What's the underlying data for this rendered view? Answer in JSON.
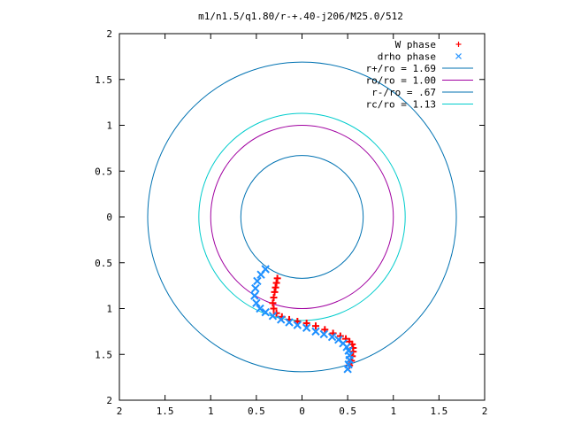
{
  "chart_data": {
    "type": "scatter",
    "title": "m1/n1.5/q1.80/r-+.40-j206/M25.0/512",
    "xlabel": "",
    "ylabel": "",
    "xlim": [
      -2,
      2
    ],
    "ylim": [
      -2,
      2
    ],
    "x_ticks": [
      -2,
      -1.5,
      -1,
      -0.5,
      0,
      0.5,
      1,
      1.5,
      2
    ],
    "y_ticks": [
      -2,
      -1.5,
      -1,
      -0.5,
      0,
      0.5,
      1,
      1.5,
      2
    ],
    "x_tick_labels": [
      "2",
      "1.5",
      "1",
      "0.5",
      "0",
      "0.5",
      "1",
      "1.5",
      "2"
    ],
    "y_tick_labels": [
      "2",
      "1.5",
      "1",
      "0.5",
      "0",
      "0.5",
      "1",
      "1.5",
      "2"
    ],
    "grid": false,
    "legend_position": "top-right",
    "series": [
      {
        "name": "W phase",
        "kind": "points",
        "marker": "plus",
        "color": "#ff0000",
        "x": [
          -0.27,
          -0.28,
          -0.29,
          -0.3,
          -0.31,
          -0.32,
          -0.31,
          -0.28,
          -0.22,
          -0.14,
          -0.05,
          0.05,
          0.15,
          0.25,
          0.34,
          0.42,
          0.48,
          0.52,
          0.55,
          0.56,
          0.56,
          0.55,
          0.54,
          0.52
        ],
        "y": [
          -0.67,
          -0.72,
          -0.77,
          -0.82,
          -0.88,
          -0.94,
          -1.0,
          -1.05,
          -1.09,
          -1.12,
          -1.14,
          -1.16,
          -1.19,
          -1.23,
          -1.27,
          -1.3,
          -1.33,
          -1.36,
          -1.39,
          -1.43,
          -1.47,
          -1.52,
          -1.57,
          -1.62
        ]
      },
      {
        "name": "drho phase",
        "kind": "points",
        "marker": "cross",
        "color": "#1e90ff",
        "x": [
          -0.4,
          -0.45,
          -0.49,
          -0.51,
          -0.52,
          -0.5,
          -0.46,
          -0.4,
          -0.32,
          -0.23,
          -0.14,
          -0.05,
          0.05,
          0.15,
          0.24,
          0.33,
          0.4,
          0.45,
          0.49,
          0.51,
          0.52,
          0.52,
          0.51,
          0.5
        ],
        "y": [
          -0.57,
          -0.63,
          -0.7,
          -0.78,
          -0.86,
          -0.94,
          -1.0,
          -1.04,
          -1.08,
          -1.12,
          -1.15,
          -1.18,
          -1.21,
          -1.25,
          -1.28,
          -1.31,
          -1.34,
          -1.38,
          -1.42,
          -1.46,
          -1.51,
          -1.56,
          -1.61,
          -1.66
        ]
      },
      {
        "name": "r+/ro = 1.69",
        "kind": "circle",
        "radius": 1.69,
        "color": "#0072b2"
      },
      {
        "name": "ro/ro = 1.00",
        "kind": "circle",
        "radius": 1.0,
        "color": "#a000a0"
      },
      {
        "name": "r-/ro = .67",
        "kind": "circle",
        "radius": 0.67,
        "color": "#0072b2"
      },
      {
        "name": "rc/ro = 1.13",
        "kind": "circle",
        "radius": 1.13,
        "color": "#00cccc"
      }
    ]
  }
}
